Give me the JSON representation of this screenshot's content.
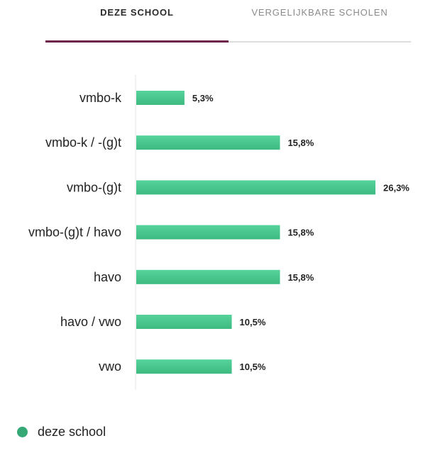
{
  "tabs": [
    {
      "label": "DEZE SCHOOL",
      "active": true
    },
    {
      "label": "VERGELIJKBARE SCHOLEN",
      "active": false
    }
  ],
  "colors": {
    "bar_top": "#55d39b",
    "bar_bottom": "#3cba80",
    "legend_dot": "#36a876",
    "tab_active_underline": "#6b2148"
  },
  "chart_data": {
    "type": "bar",
    "orientation": "horizontal",
    "categories": [
      "vmbo-k",
      "vmbo-k / -(g)t",
      "vmbo-(g)t",
      "vmbo-(g)t / havo",
      "havo",
      "havo / vwo",
      "vwo"
    ],
    "series": [
      {
        "name": "deze school",
        "values": [
          5.3,
          15.8,
          26.3,
          15.8,
          15.8,
          10.5,
          10.5
        ]
      }
    ],
    "value_labels": [
      "5,3%",
      "15,8%",
      "26,3%",
      "15,8%",
      "15,8%",
      "10,5%",
      "10,5%"
    ],
    "xlim": [
      0,
      26.3
    ],
    "grid": false,
    "legend_position": "bottom-left"
  },
  "legend": {
    "label": "deze school"
  }
}
